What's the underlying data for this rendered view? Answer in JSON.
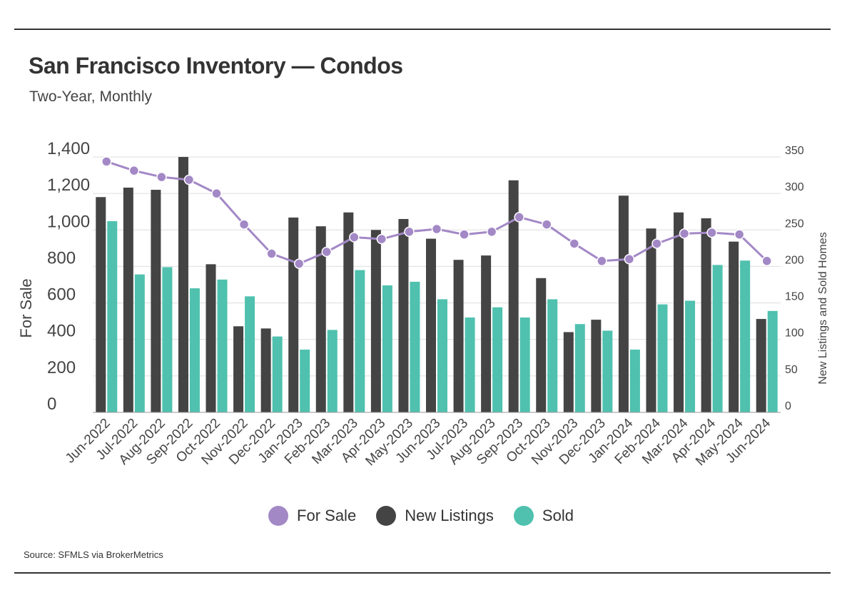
{
  "header": {
    "title": "San Francisco Inventory — Condos",
    "subtitle": "Two-Year, Monthly"
  },
  "footer": {
    "source": "Source:  SFMLS via BrokerMetrics"
  },
  "colors": {
    "for_sale": "#A388C6",
    "new_listings": "#444444",
    "sold": "#4FC1AE",
    "grid": "#DDDDDD",
    "axis_text": "#444444"
  },
  "chart_data": {
    "type": "bar",
    "categories": [
      "Jun-2022",
      "Jul-2022",
      "Aug-2022",
      "Sep-2022",
      "Oct-2022",
      "Nov-2022",
      "Dec-2022",
      "Jan-2023",
      "Feb-2023",
      "Mar-2023",
      "Apr-2023",
      "May-2023",
      "Jun-2023",
      "Jul-2023",
      "Aug-2023",
      "Sep-2023",
      "Oct-2023",
      "Nov-2023",
      "Dec-2023",
      "Jan-2024",
      "Feb-2024",
      "Mar-2024",
      "Apr-2024",
      "May-2024",
      "Jun-2024"
    ],
    "ylabel": "For Sale",
    "y2label": "New Listings and Sold Homes",
    "ylim": [
      0,
      1400
    ],
    "y_ticks": [
      0,
      200,
      400,
      600,
      800,
      1000,
      1200,
      1400
    ],
    "y_tick_labels": [
      "0",
      "200",
      "400",
      "600",
      "800",
      "1,000",
      "1,200",
      "1,400"
    ],
    "y2lim": [
      0,
      350
    ],
    "y2_ticks": [
      0,
      50,
      100,
      150,
      200,
      250,
      300,
      350
    ],
    "y2_tick_labels": [
      "0",
      "50",
      "100",
      "150",
      "200",
      "250",
      "300",
      "350"
    ],
    "grid": true,
    "legend_position": "bottom",
    "series": [
      {
        "name": "For Sale",
        "type": "line",
        "axis": "left",
        "values": [
          1375,
          1325,
          1290,
          1275,
          1200,
          1030,
          870,
          815,
          880,
          960,
          950,
          990,
          1005,
          975,
          990,
          1070,
          1030,
          925,
          830,
          840,
          925,
          980,
          985,
          975,
          830
        ]
      },
      {
        "name": "New Listings",
        "type": "bar",
        "axis": "right",
        "values": [
          295,
          308,
          305,
          350,
          203,
          118,
          115,
          267,
          255,
          274,
          250,
          265,
          238,
          209,
          215,
          318,
          184,
          110,
          127,
          297,
          252,
          274,
          266,
          234,
          128
        ]
      },
      {
        "name": "Sold",
        "type": "bar",
        "axis": "right",
        "values": [
          262,
          189,
          199,
          170,
          182,
          159,
          104,
          86,
          113,
          195,
          174,
          179,
          155,
          130,
          144,
          130,
          155,
          121,
          112,
          86,
          148,
          153,
          202,
          208,
          139
        ]
      }
    ]
  }
}
